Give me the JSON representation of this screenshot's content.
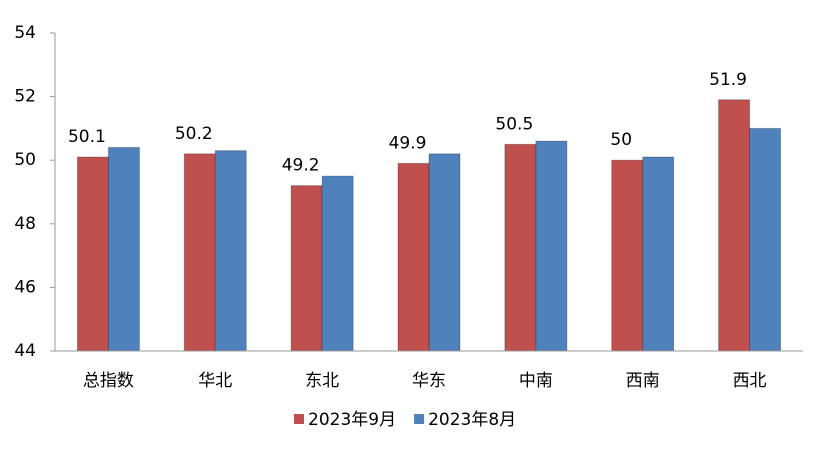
{
  "chart_data": {
    "type": "bar",
    "categories": [
      "总指数",
      "华北",
      "东北",
      "华东",
      "中南",
      "西南",
      "西北"
    ],
    "series": [
      {
        "name": "2023年9月",
        "color": "#c0504d",
        "values": [
          50.1,
          50.2,
          49.2,
          49.9,
          50.5,
          50,
          51.9
        ]
      },
      {
        "name": "2023年8月",
        "color": "#4f81bd",
        "values": [
          50.4,
          50.3,
          49.5,
          50.2,
          50.6,
          50.1,
          51.0
        ]
      }
    ],
    "ylim": [
      44,
      54
    ],
    "yticks": [
      44,
      46,
      48,
      50,
      52,
      54
    ],
    "grid": false,
    "data_labels_series": 0,
    "legend": "bottom"
  }
}
